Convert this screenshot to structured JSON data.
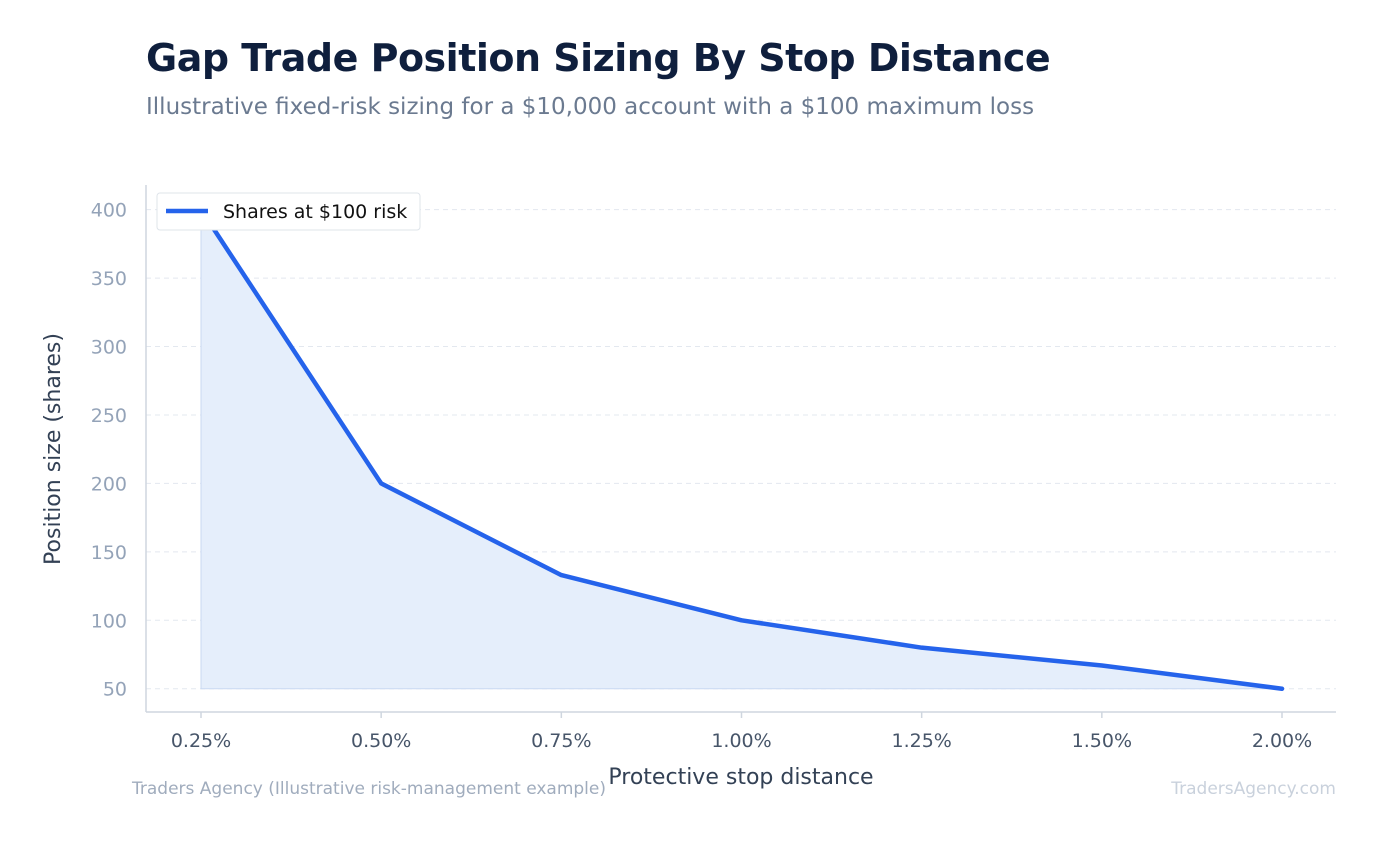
{
  "title": "Gap Trade Position Sizing By Stop Distance",
  "subtitle": "Illustrative fixed-risk sizing for a $10,000 account with a $100 maximum loss",
  "footer": {
    "source": "Traders Agency (Illustrative risk-management example)",
    "watermark": "TradersAgency.com"
  },
  "colors": {
    "line": "#2563eb",
    "area": "#e5eefb",
    "grid": "#e3e8ef",
    "axis": "#cfd6df",
    "tick_text": "#94a3b8",
    "xtick_text": "#475569",
    "axis_label": "#334155"
  },
  "chart_data": {
    "type": "area",
    "title": "",
    "xlabel": "Protective stop distance",
    "ylabel": "Position size (shares)",
    "categories": [
      "0.25%",
      "0.50%",
      "0.75%",
      "1.00%",
      "1.25%",
      "1.50%",
      "2.00%"
    ],
    "series": [
      {
        "name": "Shares at $100 risk",
        "values": [
          400,
          200,
          133,
          100,
          80,
          67,
          50
        ]
      }
    ],
    "ylim": [
      33,
      418
    ],
    "yticks": [
      50,
      100,
      150,
      200,
      250,
      300,
      350,
      400
    ],
    "grid": "horizontal dashed",
    "legend": "top-left"
  }
}
